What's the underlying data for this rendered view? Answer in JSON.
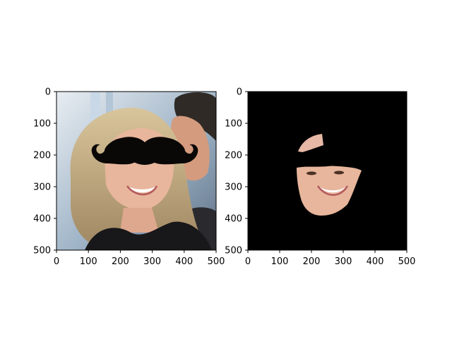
{
  "chart_data": [
    {
      "type": "image",
      "title": "",
      "xlabel": "",
      "ylabel": "",
      "xlim": [
        0,
        500
      ],
      "ylim": [
        500,
        0
      ],
      "xticks": [
        "0",
        "100",
        "200",
        "300",
        "400",
        "500"
      ],
      "yticks": [
        "0",
        "100",
        "200",
        "300",
        "400",
        "500"
      ],
      "description_tag": "photo-of-couple-with-mustache-overlay"
    },
    {
      "type": "image",
      "title": "",
      "xlabel": "",
      "ylabel": "",
      "xlim": [
        0,
        500
      ],
      "ylim": [
        500,
        0
      ],
      "xticks": [
        "0",
        "100",
        "200",
        "300",
        "400",
        "500"
      ],
      "yticks": [
        "0",
        "100",
        "200",
        "300",
        "400",
        "500"
      ],
      "description_tag": "face-mask-on-black-background"
    }
  ],
  "colors": {
    "background": "#000000",
    "mustache": "#0a0707",
    "hair": "#c8b089",
    "skin": "#e8b69c"
  }
}
